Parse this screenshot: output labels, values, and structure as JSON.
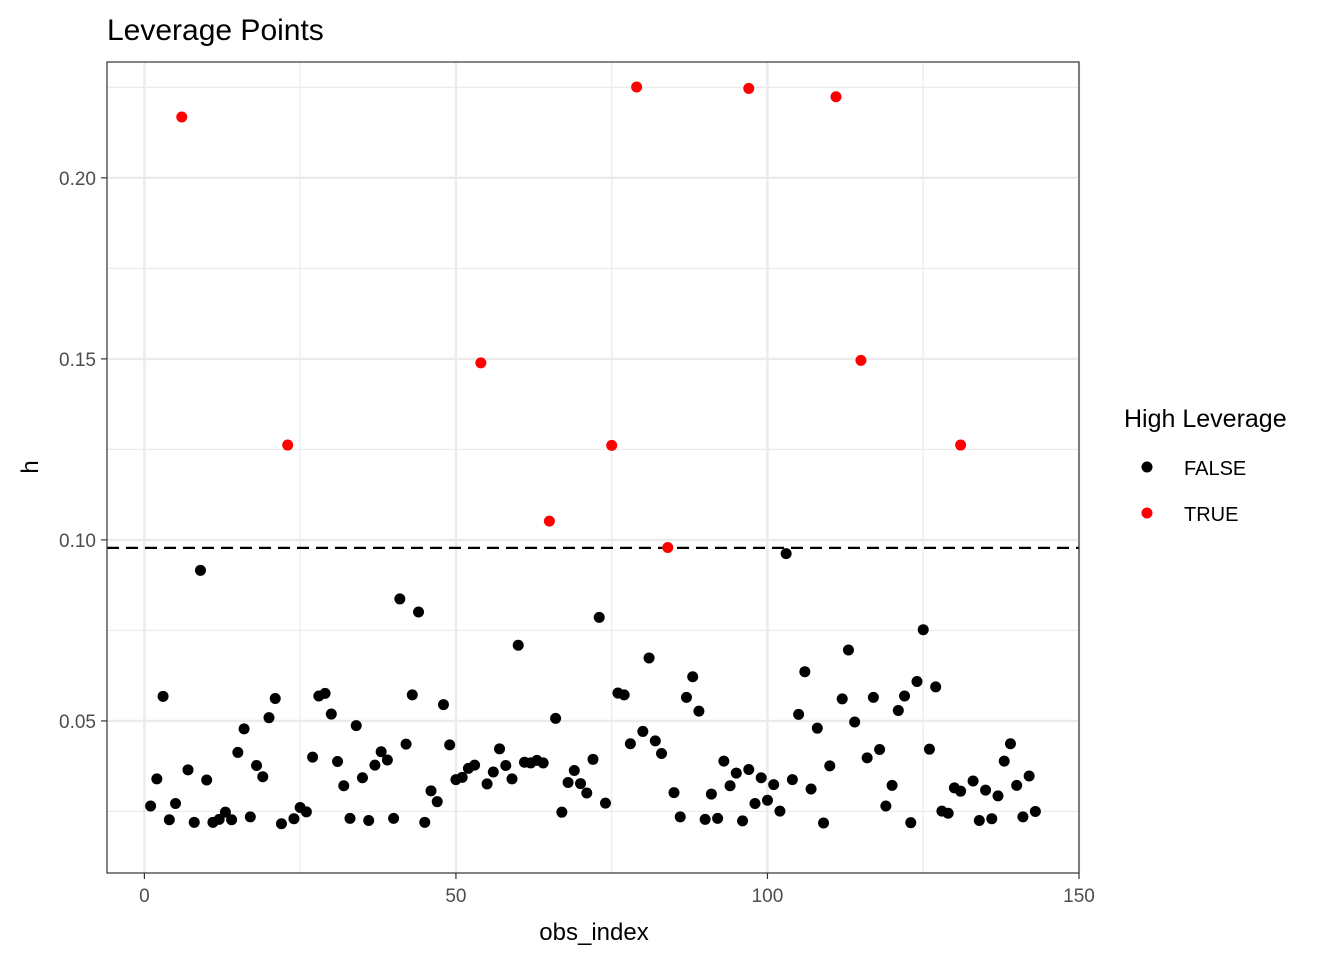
{
  "chart_data": {
    "type": "scatter",
    "title": "Leverage Points",
    "xlabel": "obs_index",
    "ylabel": "h",
    "xlim": [
      -6,
      150
    ],
    "ylim": [
      0.008,
      0.232
    ],
    "xticks": [
      0,
      50,
      100,
      150
    ],
    "xtick_labels": [
      "0",
      "50",
      "100",
      "150"
    ],
    "yticks": [
      0.05,
      0.1,
      0.15,
      0.2
    ],
    "ytick_labels": [
      "0.05",
      "0.10",
      "0.15",
      "0.20"
    ],
    "grid": true,
    "threshold": 0.0978,
    "legend": {
      "title": "High Leverage",
      "position": "right",
      "entries": [
        {
          "label": "FALSE",
          "color": "#000000"
        },
        {
          "label": "TRUE",
          "color": "#ff0000"
        }
      ]
    },
    "series": [
      {
        "name": "FALSE",
        "color": "#000000",
        "points": [
          [
            1,
            0.0265
          ],
          [
            2,
            0.034
          ],
          [
            3,
            0.0568
          ],
          [
            4,
            0.0227
          ],
          [
            5,
            0.0272
          ],
          [
            7,
            0.0365
          ],
          [
            8,
            0.022
          ],
          [
            9,
            0.0916
          ],
          [
            10,
            0.0337
          ],
          [
            11,
            0.022
          ],
          [
            12,
            0.0228
          ],
          [
            13,
            0.0248
          ],
          [
            14,
            0.0227
          ],
          [
            15,
            0.0413
          ],
          [
            16,
            0.0478
          ],
          [
            17,
            0.0235
          ],
          [
            18,
            0.0377
          ],
          [
            19,
            0.0346
          ],
          [
            20,
            0.0509
          ],
          [
            21,
            0.0562
          ],
          [
            22,
            0.0216
          ],
          [
            24,
            0.023
          ],
          [
            25,
            0.0261
          ],
          [
            26,
            0.0249
          ],
          [
            27,
            0.04
          ],
          [
            28,
            0.0569
          ],
          [
            29,
            0.0576
          ],
          [
            30,
            0.0519
          ],
          [
            31,
            0.0388
          ],
          [
            32,
            0.0321
          ],
          [
            33,
            0.0231
          ],
          [
            34,
            0.0487
          ],
          [
            35,
            0.0343
          ],
          [
            36,
            0.0225
          ],
          [
            37,
            0.0378
          ],
          [
            38,
            0.0415
          ],
          [
            39,
            0.0392
          ],
          [
            40,
            0.0231
          ],
          [
            41,
            0.0837
          ],
          [
            42,
            0.0436
          ],
          [
            43,
            0.0572
          ],
          [
            44,
            0.0801
          ],
          [
            45,
            0.022
          ],
          [
            46,
            0.0307
          ],
          [
            47,
            0.0277
          ],
          [
            48,
            0.0545
          ],
          [
            49,
            0.0434
          ],
          [
            50,
            0.0338
          ],
          [
            51,
            0.0344
          ],
          [
            52,
            0.0369
          ],
          [
            53,
            0.0378
          ],
          [
            55,
            0.0326
          ],
          [
            56,
            0.0359
          ],
          [
            57,
            0.0423
          ],
          [
            58,
            0.0377
          ],
          [
            59,
            0.034
          ],
          [
            60,
            0.0709
          ],
          [
            61,
            0.0386
          ],
          [
            62,
            0.0384
          ],
          [
            63,
            0.0391
          ],
          [
            64,
            0.0384
          ],
          [
            66,
            0.0507
          ],
          [
            67,
            0.0248
          ],
          [
            68,
            0.033
          ],
          [
            69,
            0.0363
          ],
          [
            70,
            0.0327
          ],
          [
            71,
            0.0301
          ],
          [
            72,
            0.0394
          ],
          [
            73,
            0.0786
          ],
          [
            74,
            0.0273
          ],
          [
            76,
            0.0577
          ],
          [
            77,
            0.0572
          ],
          [
            78,
            0.0437
          ],
          [
            80,
            0.0471
          ],
          [
            81,
            0.0674
          ],
          [
            82,
            0.0445
          ],
          [
            83,
            0.041
          ],
          [
            85,
            0.0302
          ],
          [
            86,
            0.0235
          ],
          [
            87,
            0.0565
          ],
          [
            88,
            0.0622
          ],
          [
            89,
            0.0527
          ],
          [
            90,
            0.0228
          ],
          [
            91,
            0.0298
          ],
          [
            92,
            0.0231
          ],
          [
            93,
            0.0389
          ],
          [
            94,
            0.0321
          ],
          [
            95,
            0.0356
          ],
          [
            96,
            0.0224
          ],
          [
            97,
            0.0366
          ],
          [
            98,
            0.0272
          ],
          [
            99,
            0.0343
          ],
          [
            100,
            0.0281
          ],
          [
            101,
            0.0324
          ],
          [
            102,
            0.0251
          ],
          [
            103,
            0.0962
          ],
          [
            104,
            0.0338
          ],
          [
            105,
            0.0518
          ],
          [
            106,
            0.0636
          ],
          [
            107,
            0.0312
          ],
          [
            108,
            0.048
          ],
          [
            109,
            0.0218
          ],
          [
            110,
            0.0376
          ],
          [
            112,
            0.0561
          ],
          [
            113,
            0.0696
          ],
          [
            114,
            0.0497
          ],
          [
            116,
            0.0398
          ],
          [
            117,
            0.0565
          ],
          [
            118,
            0.0421
          ],
          [
            119,
            0.0265
          ],
          [
            120,
            0.0322
          ],
          [
            121,
            0.0529
          ],
          [
            122,
            0.0569
          ],
          [
            123,
            0.0219
          ],
          [
            124,
            0.0609
          ],
          [
            125,
            0.0752
          ],
          [
            126,
            0.0422
          ],
          [
            127,
            0.0594
          ],
          [
            128,
            0.0251
          ],
          [
            129,
            0.0245
          ],
          [
            130,
            0.0315
          ],
          [
            131,
            0.0306
          ],
          [
            133,
            0.0334
          ],
          [
            134,
            0.0225
          ],
          [
            135,
            0.0309
          ],
          [
            136,
            0.023
          ],
          [
            137,
            0.0293
          ],
          [
            138,
            0.0389
          ],
          [
            139,
            0.0437
          ],
          [
            140,
            0.0322
          ],
          [
            141,
            0.0235
          ],
          [
            142,
            0.0348
          ],
          [
            143,
            0.025
          ]
        ]
      },
      {
        "name": "TRUE",
        "color": "#ff0000",
        "points": [
          [
            6,
            0.2168
          ],
          [
            23,
            0.1262
          ],
          [
            54,
            0.1489
          ],
          [
            65,
            0.1052
          ],
          [
            75,
            0.1261
          ],
          [
            79,
            0.2251
          ],
          [
            84,
            0.0979
          ],
          [
            97,
            0.2247
          ],
          [
            111,
            0.2224
          ],
          [
            115,
            0.1496
          ],
          [
            131,
            0.1262
          ]
        ]
      }
    ]
  }
}
